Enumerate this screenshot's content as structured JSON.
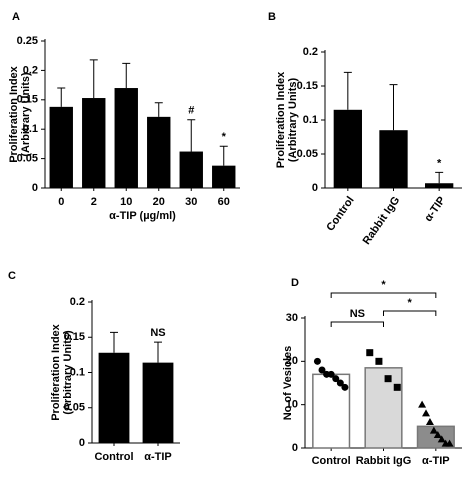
{
  "chart_data": [
    {
      "type": "bar",
      "panel": "A",
      "categories": [
        "0",
        "2",
        "10",
        "20",
        "30",
        "60"
      ],
      "values": [
        0.138,
        0.153,
        0.17,
        0.121,
        0.062,
        0.038
      ],
      "errors": [
        0.032,
        0.065,
        0.042,
        0.024,
        0.054,
        0.033
      ],
      "color": "#000000",
      "ylim": [
        0,
        0.25
      ],
      "yticks": [
        0,
        0.05,
        0.1,
        0.15,
        0.2,
        0.25
      ],
      "ylabel": [
        "Proliferation Index",
        "(Arbitrary Units)"
      ],
      "xlabel": "α-TIP (µg/ml)",
      "annotations": [
        null,
        null,
        null,
        null,
        "#",
        "*"
      ]
    },
    {
      "type": "bar",
      "panel": "B",
      "categories": [
        "Control",
        "Rabbit IgG",
        "α-TIP"
      ],
      "values": [
        0.115,
        0.085,
        0.007
      ],
      "errors": [
        0.055,
        0.067,
        0.016
      ],
      "color": "#000000",
      "ylim": [
        0,
        0.2
      ],
      "yticks": [
        0,
        0.05,
        0.1,
        0.15,
        0.2
      ],
      "ylabel": [
        "Proliferation Index",
        "(Arbitrary Units)"
      ],
      "annotations": [
        null,
        null,
        "*"
      ]
    },
    {
      "type": "bar",
      "panel": "C",
      "categories": [
        "Control",
        "α-TIP"
      ],
      "values": [
        0.128,
        0.114
      ],
      "errors": [
        0.029,
        0.029
      ],
      "color": "#000000",
      "ylim": [
        0,
        0.2
      ],
      "yticks": [
        0,
        0.05,
        0.1,
        0.15,
        0.2
      ],
      "ylabel": [
        "Proliferation Index",
        "(Arbitrary Units)"
      ],
      "annotations": [
        null,
        "NS"
      ]
    },
    {
      "type": "dotbar",
      "panel": "D",
      "categories": [
        "Control",
        "Rabbit IgG",
        "α-TIP"
      ],
      "values": [
        17,
        18.5,
        5
      ],
      "colors": [
        "#ffffff",
        "#d9d9d9",
        "#8c8c8c"
      ],
      "points": [
        [
          20,
          18,
          17,
          17,
          16,
          15,
          14
        ],
        [
          22,
          20,
          16,
          14
        ],
        [
          10,
          8,
          6,
          4,
          3,
          2,
          1,
          1
        ]
      ],
      "ylim": [
        0,
        30
      ],
      "yticks": [
        0,
        10,
        20,
        30
      ],
      "ylabel": [
        "No of Vesicles"
      ],
      "brackets": [
        "*",
        "NS",
        "*"
      ]
    }
  ]
}
